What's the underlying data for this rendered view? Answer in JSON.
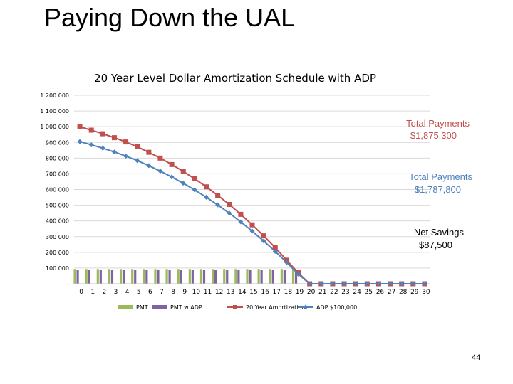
{
  "slide": {
    "title": "Paying Down the UAL",
    "page_number": "44"
  },
  "chart_data": {
    "type": "bar",
    "title": "20 Year Level Dollar Amortization Schedule with ADP",
    "categories": [
      "0",
      "1",
      "2",
      "3",
      "4",
      "5",
      "6",
      "7",
      "8",
      "9",
      "10",
      "11",
      "12",
      "13",
      "14",
      "15",
      "16",
      "17",
      "18",
      "19",
      "20",
      "21",
      "22",
      "23",
      "24",
      "25",
      "26",
      "27",
      "28",
      "29",
      "30"
    ],
    "ylim": [
      0,
      1200000
    ],
    "ytick_labels": [
      "-",
      "100 000",
      "200 000",
      "300 000",
      "400 000",
      "500 000",
      "600 000",
      "700 000",
      "800 000",
      "900 000",
      "1 000 000",
      "1 100 000",
      "1 200 000"
    ],
    "grid": true,
    "legend_position": "bottom",
    "series": [
      {
        "name": "PMT",
        "type": "bar",
        "color": "#9bbb59",
        "values": [
          93750,
          93750,
          93750,
          93750,
          93750,
          93750,
          93750,
          93750,
          93750,
          93750,
          93750,
          93750,
          93750,
          93750,
          93750,
          93750,
          93750,
          93750,
          93750,
          93750,
          0,
          0,
          0,
          0,
          0,
          0,
          0,
          0,
          0,
          0,
          0
        ]
      },
      {
        "name": "PMT w ADP",
        "type": "bar",
        "color": "#8064a2",
        "values": [
          89400,
          89400,
          89400,
          89400,
          89400,
          89400,
          89400,
          89400,
          89400,
          89400,
          89400,
          89400,
          89400,
          89400,
          89400,
          89400,
          89400,
          89400,
          89400,
          89400,
          0,
          0,
          0,
          0,
          0,
          0,
          0,
          0,
          0,
          0,
          0
        ]
      },
      {
        "name": "20 Year Amortization",
        "type": "line",
        "color": "#c0504d",
        "marker": "square",
        "values": [
          1000000,
          978000,
          955000,
          930000,
          903000,
          872000,
          837000,
          800000,
          759000,
          715000,
          668000,
          617000,
          563000,
          505000,
          442000,
          375000,
          305000,
          230000,
          150000,
          70000,
          0,
          0,
          0,
          0,
          0,
          0,
          0,
          0,
          0,
          0,
          0
        ]
      },
      {
        "name": "ADP $100,000",
        "type": "line",
        "color": "#4f81bd",
        "marker": "diamond",
        "values": [
          905000,
          885000,
          863000,
          839000,
          813000,
          784000,
          752000,
          717000,
          680000,
          640000,
          597000,
          551000,
          502000,
          450000,
          394000,
          335000,
          272000,
          206000,
          136000,
          62000,
          0,
          0,
          0,
          0,
          0,
          0,
          0,
          0,
          0,
          0,
          0
        ]
      }
    ],
    "annotations": [
      {
        "id": "total-20yr",
        "line1": "Total Payments",
        "line2": "$1,875,300",
        "color": "#c0504d"
      },
      {
        "id": "total-adp",
        "line1": "Total Payments",
        "line2": "$1,787,800",
        "color": "#4f81bd"
      },
      {
        "id": "net-savings",
        "line1": "Net Savings",
        "line2": "$87,500",
        "color": "#000000"
      }
    ]
  }
}
